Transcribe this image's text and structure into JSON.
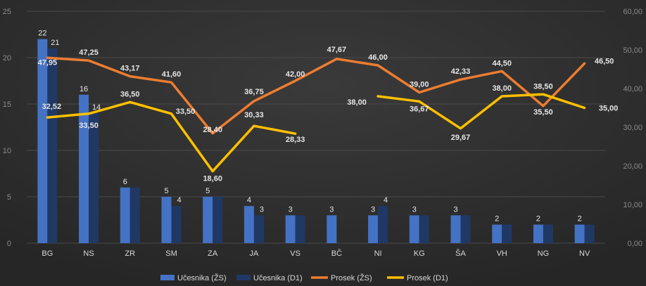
{
  "chart_data": {
    "type": "bar",
    "categories": [
      "BG",
      "NS",
      "ZR",
      "SM",
      "ZA",
      "JA",
      "VS",
      "BČ",
      "NI",
      "KG",
      "ŠA",
      "VH",
      "NG",
      "NV"
    ],
    "y_left_ticks": [
      "0",
      "5",
      "10",
      "15",
      "20",
      "25"
    ],
    "y_right_ticks": [
      "0,00",
      "10,00",
      "20,00",
      "30,00",
      "40,00",
      "50,00",
      "60,00"
    ],
    "ylim_left": [
      0,
      25
    ],
    "ylim_right": [
      0,
      60
    ],
    "series": [
      {
        "name": "Učesnika (ŽS)",
        "type": "bar",
        "axis": "left",
        "color": "#4472c4",
        "values": [
          22,
          16,
          6,
          5,
          5,
          4,
          3,
          3,
          3,
          3,
          3,
          2,
          2,
          2
        ],
        "labels": [
          "22",
          "16",
          "6",
          "5",
          "5",
          "4",
          "3",
          "3",
          "3",
          "3",
          "3",
          "2",
          "2",
          "2"
        ]
      },
      {
        "name": "Učesnika (D1)",
        "type": "bar",
        "axis": "left",
        "color": "#203864",
        "values": [
          21,
          14,
          6,
          4,
          5,
          3,
          3,
          null,
          4,
          3,
          3,
          2,
          2,
          2
        ],
        "labels": [
          "21",
          "14",
          "",
          "4",
          "",
          "3",
          "",
          "",
          "4",
          "",
          "",
          "",
          "",
          ""
        ]
      },
      {
        "name": "Prosek (ŽS)",
        "type": "line",
        "axis": "right",
        "color": "#ed7d31",
        "values": [
          47.95,
          47.25,
          43.17,
          41.6,
          28.4,
          36.75,
          42.0,
          47.67,
          46.0,
          39.0,
          42.33,
          44.5,
          35.5,
          46.5
        ],
        "labels": [
          "47,95",
          "47,25",
          "43,17",
          "41,60",
          "28,40",
          "36,75",
          "42,00",
          "47,67",
          "46,00",
          "39,00",
          "42,33",
          "44,50",
          "35,50",
          "46,50"
        ]
      },
      {
        "name": "Prosek (D1)",
        "type": "line",
        "axis": "right",
        "color": "#ffc000",
        "values": [
          32.52,
          33.5,
          36.5,
          33.5,
          18.6,
          30.33,
          28.33,
          null,
          38.0,
          36.67,
          29.67,
          38.0,
          38.5,
          35.0
        ],
        "labels": [
          "32,52",
          "33,50",
          "36,50",
          "33,50",
          "18,60",
          "30,33",
          "28,33",
          "",
          "38,00",
          "36,67",
          "29,67",
          "38,00",
          "38,50",
          "35,00"
        ]
      }
    ],
    "legend_position": "bottom"
  }
}
